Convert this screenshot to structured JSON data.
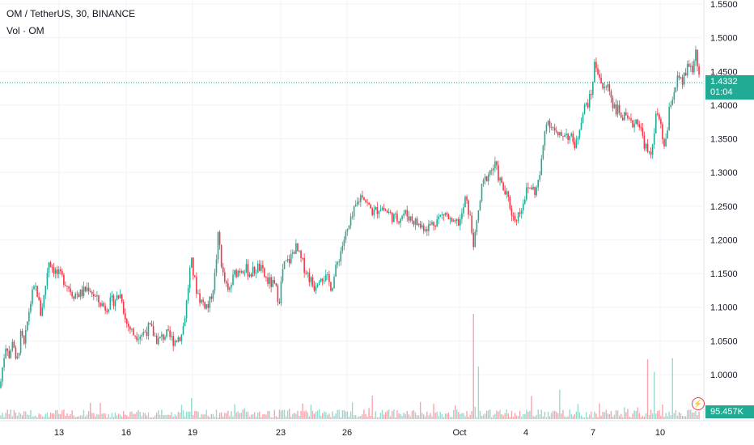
{
  "header": {
    "symbol_line": "OM / TetherUS, 30, BINANCE",
    "volume_line": "Vol · OM"
  },
  "price_tag": {
    "price": "1.4332",
    "countdown": "01:04"
  },
  "volume_tag": {
    "value": "95.457K"
  },
  "icons": {
    "volume_alert": "lightning-icon"
  },
  "colors": {
    "up": "#22ab94",
    "down": "#f23645",
    "grid": "#f0f3fa",
    "price_line": "#22ab94"
  },
  "chart_data": {
    "type": "candlestick",
    "ylim": [
      0.955,
      1.56
    ],
    "y_ticks": [
      "1.5500",
      "1.5000",
      "1.4500",
      "1.4000",
      "1.3500",
      "1.3000",
      "1.2500",
      "1.2000",
      "1.1500",
      "1.1000",
      "1.0500",
      "1.0000"
    ],
    "x_ticks": [
      "13",
      "16",
      "19",
      "23",
      "26",
      "Oct",
      "4",
      "7",
      "10"
    ],
    "last_price": 1.4332,
    "price_path": [
      [
        0,
        0.98
      ],
      [
        4,
        1.02
      ],
      [
        8,
        1.05
      ],
      [
        12,
        1.02
      ],
      [
        16,
        1.06
      ],
      [
        20,
        1.01
      ],
      [
        26,
        1.06
      ],
      [
        30,
        1.04
      ],
      [
        35,
        1.09
      ],
      [
        40,
        1.12
      ],
      [
        45,
        1.13
      ],
      [
        50,
        1.09
      ],
      [
        55,
        1.12
      ],
      [
        60,
        1.17
      ],
      [
        65,
        1.16
      ],
      [
        70,
        1.15
      ],
      [
        80,
        1.14
      ],
      [
        90,
        1.12
      ],
      [
        100,
        1.12
      ],
      [
        110,
        1.13
      ],
      [
        120,
        1.11
      ],
      [
        130,
        1.1
      ],
      [
        140,
        1.11
      ],
      [
        150,
        1.12
      ],
      [
        155,
        1.08
      ],
      [
        165,
        1.06
      ],
      [
        175,
        1.06
      ],
      [
        185,
        1.07
      ],
      [
        195,
        1.05
      ],
      [
        205,
        1.06
      ],
      [
        215,
        1.05
      ],
      [
        225,
        1.06
      ],
      [
        230,
        1.1
      ],
      [
        236,
        1.17
      ],
      [
        242,
        1.13
      ],
      [
        248,
        1.11
      ],
      [
        258,
        1.1
      ],
      [
        265,
        1.14
      ],
      [
        270,
        1.21
      ],
      [
        275,
        1.15
      ],
      [
        282,
        1.12
      ],
      [
        290,
        1.15
      ],
      [
        300,
        1.16
      ],
      [
        310,
        1.15
      ],
      [
        320,
        1.16
      ],
      [
        330,
        1.14
      ],
      [
        340,
        1.13
      ],
      [
        345,
        1.11
      ],
      [
        350,
        1.16
      ],
      [
        358,
        1.17
      ],
      [
        365,
        1.19
      ],
      [
        372,
        1.17
      ],
      [
        380,
        1.15
      ],
      [
        388,
        1.13
      ],
      [
        396,
        1.15
      ],
      [
        405,
        1.14
      ],
      [
        410,
        1.13
      ],
      [
        418,
        1.17
      ],
      [
        425,
        1.2
      ],
      [
        432,
        1.22
      ],
      [
        440,
        1.25
      ],
      [
        448,
        1.27
      ],
      [
        455,
        1.25
      ],
      [
        462,
        1.24
      ],
      [
        470,
        1.25
      ],
      [
        480,
        1.24
      ],
      [
        490,
        1.23
      ],
      [
        500,
        1.24
      ],
      [
        510,
        1.23
      ],
      [
        520,
        1.22
      ],
      [
        530,
        1.22
      ],
      [
        540,
        1.23
      ],
      [
        550,
        1.24
      ],
      [
        560,
        1.22
      ],
      [
        570,
        1.23
      ],
      [
        575,
        1.26
      ],
      [
        580,
        1.24
      ],
      [
        586,
        1.19
      ],
      [
        590,
        1.23
      ],
      [
        596,
        1.28
      ],
      [
        604,
        1.3
      ],
      [
        612,
        1.31
      ],
      [
        620,
        1.28
      ],
      [
        628,
        1.26
      ],
      [
        635,
        1.23
      ],
      [
        642,
        1.24
      ],
      [
        650,
        1.27
      ],
      [
        656,
        1.28
      ],
      [
        662,
        1.27
      ],
      [
        668,
        1.3
      ],
      [
        675,
        1.38
      ],
      [
        682,
        1.37
      ],
      [
        690,
        1.35
      ],
      [
        698,
        1.36
      ],
      [
        706,
        1.35
      ],
      [
        712,
        1.34
      ],
      [
        718,
        1.38
      ],
      [
        724,
        1.4
      ],
      [
        730,
        1.41
      ],
      [
        735,
        1.46
      ],
      [
        740,
        1.45
      ],
      [
        746,
        1.42
      ],
      [
        752,
        1.43
      ],
      [
        758,
        1.4
      ],
      [
        765,
        1.39
      ],
      [
        772,
        1.38
      ],
      [
        780,
        1.37
      ],
      [
        788,
        1.38
      ],
      [
        795,
        1.35
      ],
      [
        800,
        1.33
      ],
      [
        804,
        1.32
      ],
      [
        808,
        1.36
      ],
      [
        812,
        1.39
      ],
      [
        816,
        1.37
      ],
      [
        820,
        1.34
      ],
      [
        824,
        1.35
      ],
      [
        828,
        1.4
      ],
      [
        833,
        1.42
      ],
      [
        838,
        1.44
      ],
      [
        843,
        1.43
      ],
      [
        848,
        1.45
      ],
      [
        853,
        1.46
      ],
      [
        857,
        1.45
      ],
      [
        860,
        1.49
      ],
      [
        863,
        1.44
      ],
      [
        866,
        1.433
      ]
    ],
    "volume_spikes": [
      [
        585,
        1.0
      ],
      [
        590,
        0.5
      ],
      [
        691,
        0.28
      ],
      [
        800,
        0.57
      ],
      [
        830,
        0.58
      ],
      [
        807,
        0.45
      ],
      [
        656,
        0.22
      ]
    ]
  }
}
